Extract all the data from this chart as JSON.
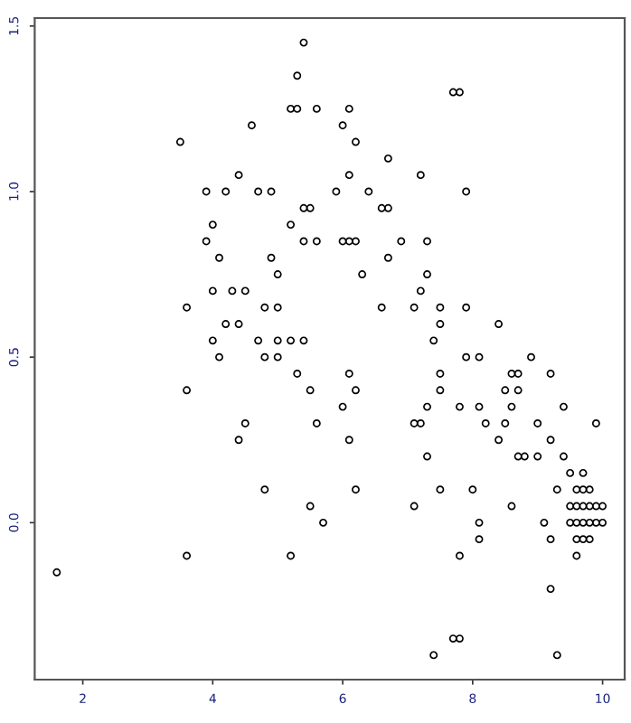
{
  "chart_data": {
    "type": "scatter",
    "x": [
      5.4,
      5.3,
      5.2,
      5.3,
      5.6,
      6.1,
      4.6,
      3.5,
      4.4,
      3.9,
      4.2,
      4.7,
      4.9,
      5.4,
      5.5,
      4.0,
      5.2,
      3.9,
      5.4,
      4.1,
      4.9,
      5.0,
      4.0,
      4.3,
      4.5,
      3.6,
      4.8,
      5.0,
      4.2,
      4.4,
      4.0,
      4.7,
      5.0,
      5.2,
      5.4,
      4.1,
      4.8,
      5.0,
      7.7,
      7.8,
      6.0,
      6.2,
      6.7,
      6.1,
      7.2,
      5.9,
      6.4,
      7.9,
      6.6,
      6.7,
      5.6,
      6.0,
      6.1,
      6.2,
      6.9,
      7.3,
      6.7,
      6.3,
      7.3,
      7.2,
      6.6,
      7.1,
      7.5,
      7.9,
      7.5,
      8.4,
      7.4,
      7.9,
      8.1,
      8.9,
      3.6,
      5.3,
      5.5,
      4.5,
      4.4,
      4.8,
      5.5,
      3.6,
      5.2,
      1.6,
      6.1,
      7.5,
      8.6,
      8.7,
      9.2,
      6.2,
      7.5,
      8.5,
      8.7,
      6.0,
      7.3,
      7.8,
      8.1,
      8.6,
      9.4,
      5.6,
      7.1,
      7.2,
      8.2,
      8.5,
      9.0,
      9.9,
      6.1,
      8.4,
      9.2,
      7.3,
      8.7,
      8.8,
      9.0,
      9.4,
      9.5,
      9.7,
      6.2,
      7.5,
      8.0,
      9.3,
      9.6,
      9.7,
      9.8,
      7.1,
      8.6,
      9.5,
      9.6,
      9.7,
      9.8,
      9.9,
      10.0,
      5.7,
      8.1,
      9.1,
      9.5,
      9.6,
      9.7,
      9.8,
      9.9,
      10.0,
      8.1,
      9.2,
      9.6,
      9.7,
      9.8,
      7.8,
      9.6,
      9.2,
      7.7,
      7.8,
      7.4,
      9.3
    ],
    "values": [
      1.45,
      1.35,
      1.25,
      1.25,
      1.25,
      1.25,
      1.2,
      1.15,
      1.05,
      1.0,
      1.0,
      1.0,
      1.0,
      0.95,
      0.95,
      0.9,
      0.9,
      0.85,
      0.85,
      0.8,
      0.8,
      0.75,
      0.7,
      0.7,
      0.7,
      0.65,
      0.65,
      0.65,
      0.6,
      0.6,
      0.55,
      0.55,
      0.55,
      0.55,
      0.55,
      0.5,
      0.5,
      0.5,
      1.3,
      1.3,
      1.2,
      1.15,
      1.1,
      1.05,
      1.05,
      1.0,
      1.0,
      1.0,
      0.95,
      0.95,
      0.85,
      0.85,
      0.85,
      0.85,
      0.85,
      0.85,
      0.8,
      0.75,
      0.75,
      0.7,
      0.65,
      0.65,
      0.65,
      0.65,
      0.6,
      0.6,
      0.55,
      0.5,
      0.5,
      0.5,
      0.4,
      0.45,
      0.4,
      0.3,
      0.25,
      0.1,
      0.05,
      -0.1,
      -0.1,
      -0.15,
      0.45,
      0.45,
      0.45,
      0.45,
      0.45,
      0.4,
      0.4,
      0.4,
      0.4,
      0.35,
      0.35,
      0.35,
      0.35,
      0.35,
      0.35,
      0.3,
      0.3,
      0.3,
      0.3,
      0.3,
      0.3,
      0.3,
      0.25,
      0.25,
      0.25,
      0.2,
      0.2,
      0.2,
      0.2,
      0.2,
      0.15,
      0.15,
      0.1,
      0.1,
      0.1,
      0.1,
      0.1,
      0.1,
      0.1,
      0.05,
      0.05,
      0.05,
      0.05,
      0.05,
      0.05,
      0.05,
      0.05,
      0.0,
      0.0,
      0.0,
      0.0,
      0.0,
      0.0,
      0.0,
      0.0,
      0.0,
      -0.05,
      -0.05,
      -0.05,
      -0.05,
      -0.05,
      -0.1,
      -0.1,
      -0.2,
      -0.35,
      -0.35,
      -0.4,
      -0.4
    ],
    "color": "#000000",
    "marker": "circle",
    "xlim": [
      1.26,
      10.34
    ],
    "ylim": [
      -0.474,
      1.524
    ],
    "xticks": [
      2,
      4,
      6,
      8,
      10
    ],
    "yticks": [
      {
        "value": 0,
        "label": "0.0"
      },
      {
        "value": 0.5,
        "label": "0.5"
      },
      {
        "value": 1,
        "label": "1.0"
      },
      {
        "value": 1.5,
        "label": "1.5"
      }
    ],
    "grid": false
  }
}
